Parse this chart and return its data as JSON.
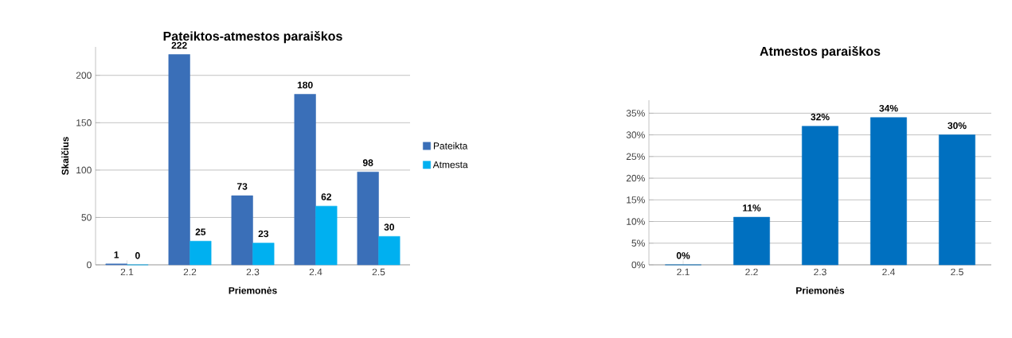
{
  "chart_data": [
    {
      "type": "bar",
      "title": "Pateiktos-atmestos paraiškos",
      "xlabel": "Priemonės",
      "ylabel": "Skaičius",
      "categories": [
        "2.1",
        "2.2",
        "2.3",
        "2.4",
        "2.5"
      ],
      "series": [
        {
          "name": "Pateikta",
          "color": "#3a6fb8",
          "values": [
            1,
            222,
            73,
            180,
            98
          ]
        },
        {
          "name": "Atmesta",
          "color": "#00b0f0",
          "values": [
            0,
            25,
            23,
            62,
            30
          ]
        }
      ],
      "ylim": [
        0,
        230
      ],
      "yticks": [
        0,
        50,
        100,
        150,
        200
      ],
      "grid": "y",
      "legend": "right",
      "data_labels": true
    },
    {
      "type": "bar",
      "title": "Atmestos paraiškos",
      "xlabel": "Priemonės",
      "categories": [
        "2.1",
        "2.2",
        "2.3",
        "2.4",
        "2.5"
      ],
      "values": [
        0,
        11,
        32,
        34,
        30
      ],
      "color": "#0070c0",
      "value_labels": [
        "0%",
        "11%",
        "32%",
        "34%",
        "30%"
      ],
      "ylim": [
        0,
        38
      ],
      "yticks": [
        {
          "value": 0,
          "label": "0%"
        },
        {
          "value": 5,
          "label": "5%"
        },
        {
          "value": 10,
          "label": "10%"
        },
        {
          "value": 15,
          "label": "15%"
        },
        {
          "value": 20,
          "label": "20%"
        },
        {
          "value": 25,
          "label": "25%"
        },
        {
          "value": 30,
          "label": "30%"
        },
        {
          "value": 35,
          "label": "35%"
        }
      ],
      "grid": "y"
    }
  ]
}
